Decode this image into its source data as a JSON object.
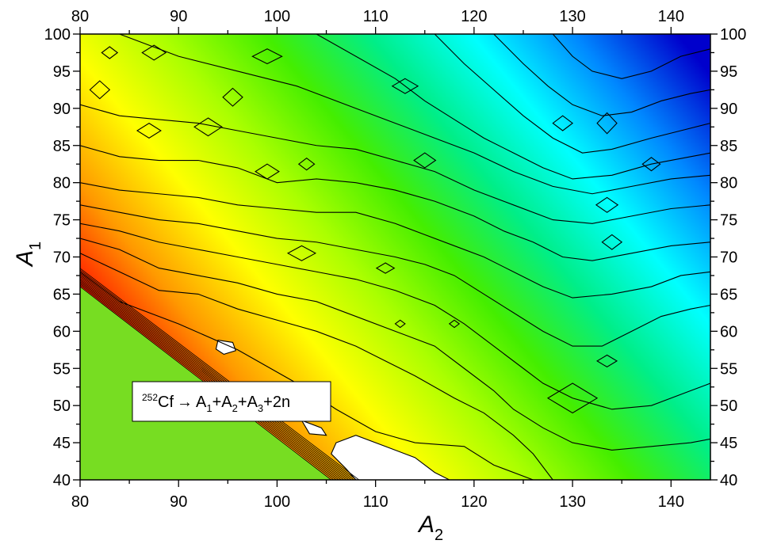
{
  "chart_data": {
    "type": "heatmap",
    "subtype": "filled-contour",
    "title": "",
    "xlabel": {
      "main": "A",
      "sub": "2"
    },
    "ylabel": {
      "main": "A",
      "sub": "1"
    },
    "xlim": [
      80,
      144
    ],
    "ylim": [
      40,
      100
    ],
    "x_ticks": [
      80,
      90,
      100,
      110,
      120,
      130,
      140
    ],
    "y_ticks": [
      40,
      45,
      50,
      55,
      60,
      65,
      70,
      75,
      80,
      85,
      90,
      95,
      100
    ],
    "tick_labels_on_all_sides": true,
    "grid": false,
    "legend": "none",
    "colormap": [
      "#ff0000",
      "#ff9900",
      "#ffff00",
      "#aaff00",
      "#44ee00",
      "#00ee88",
      "#00ffff",
      "#0088ff",
      "#0000cc"
    ],
    "low_region_color": "#77dd22",
    "annotation": {
      "prefix": "252",
      "symbol": "Cf",
      "arrow": "→",
      "terms": [
        {
          "base": "A",
          "sub": "1",
          "join": "+"
        },
        {
          "base": "A",
          "sub": "2",
          "join": "+"
        },
        {
          "base": "A",
          "sub": "3",
          "join": "+2n"
        }
      ]
    },
    "contour_lines": [
      {
        "level": 1,
        "points": [
          [
            80,
            68
          ],
          [
            84,
            64
          ],
          [
            90,
            61
          ],
          [
            96,
            57.5
          ],
          [
            102,
            53
          ],
          [
            106,
            49.5
          ],
          [
            110,
            46.5
          ],
          [
            114,
            45
          ],
          [
            119,
            44.5
          ],
          [
            122,
            42
          ],
          [
            126,
            40
          ]
        ]
      },
      {
        "level": 2,
        "points": [
          [
            80,
            70.5
          ],
          [
            84,
            68
          ],
          [
            88,
            65.5
          ],
          [
            92,
            65
          ],
          [
            96,
            63
          ],
          [
            100,
            61.5
          ],
          [
            104,
            60
          ],
          [
            108,
            58
          ],
          [
            111,
            56
          ],
          [
            114,
            54
          ],
          [
            118,
            51
          ],
          [
            121,
            49
          ],
          [
            124,
            46
          ],
          [
            126,
            43.5
          ],
          [
            128,
            40
          ]
        ]
      },
      {
        "level": 3,
        "points": [
          [
            80,
            72.5
          ],
          [
            84,
            71
          ],
          [
            88,
            68.5
          ],
          [
            92,
            67.5
          ],
          [
            96,
            66.5
          ],
          [
            100,
            65
          ],
          [
            104,
            64
          ],
          [
            108,
            62
          ],
          [
            112,
            60
          ],
          [
            116,
            58
          ],
          [
            119,
            55
          ],
          [
            122,
            52
          ],
          [
            124,
            49.5
          ],
          [
            127,
            47
          ],
          [
            130,
            45
          ],
          [
            134,
            44
          ],
          [
            138,
            44.5
          ],
          [
            142,
            45
          ],
          [
            144,
            45.5
          ]
        ]
      },
      {
        "level": 4,
        "points": [
          [
            80,
            74.5
          ],
          [
            84,
            73.5
          ],
          [
            88,
            72
          ],
          [
            92,
            71
          ],
          [
            96,
            70
          ],
          [
            100,
            69
          ],
          [
            104,
            68
          ],
          [
            108,
            67
          ],
          [
            112,
            65.5
          ],
          [
            116,
            63.5
          ],
          [
            119,
            61
          ],
          [
            121,
            59
          ],
          [
            123,
            57
          ],
          [
            125,
            55
          ],
          [
            127,
            53
          ],
          [
            130,
            51
          ],
          [
            134,
            49.5
          ],
          [
            138,
            50
          ],
          [
            142,
            52
          ],
          [
            144,
            53
          ]
        ]
      },
      {
        "level": 5,
        "points": [
          [
            80,
            77
          ],
          [
            84,
            76
          ],
          [
            88,
            75
          ],
          [
            92,
            74.5
          ],
          [
            96,
            73.5
          ],
          [
            100,
            72.5
          ],
          [
            104,
            72
          ],
          [
            108,
            71
          ],
          [
            112,
            70
          ],
          [
            115,
            69
          ],
          [
            118,
            67.5
          ],
          [
            121,
            65
          ],
          [
            124,
            62.5
          ],
          [
            127,
            60
          ],
          [
            130,
            58
          ],
          [
            133,
            58
          ],
          [
            136,
            60
          ],
          [
            139,
            62
          ],
          [
            142,
            63
          ],
          [
            144,
            63.5
          ]
        ]
      },
      {
        "level": 6,
        "points": [
          [
            80,
            80
          ],
          [
            84,
            79
          ],
          [
            88,
            78.5
          ],
          [
            92,
            78
          ],
          [
            96,
            77
          ],
          [
            100,
            76.5
          ],
          [
            104,
            76
          ],
          [
            108,
            76
          ],
          [
            112,
            74.5
          ],
          [
            115,
            73
          ],
          [
            118,
            71.5
          ],
          [
            121,
            70
          ],
          [
            124,
            68
          ],
          [
            127,
            66
          ],
          [
            130,
            64.5
          ],
          [
            134,
            65
          ],
          [
            138,
            66
          ],
          [
            141,
            67.5
          ],
          [
            144,
            68
          ]
        ]
      },
      {
        "level": 7,
        "points": [
          [
            80,
            85
          ],
          [
            84,
            83.5
          ],
          [
            88,
            83
          ],
          [
            92,
            83
          ],
          [
            96,
            82
          ],
          [
            100,
            80
          ],
          [
            104,
            80.5
          ],
          [
            108,
            80
          ],
          [
            112,
            79
          ],
          [
            116,
            77.5
          ],
          [
            120,
            75.5
          ],
          [
            123,
            73.5
          ],
          [
            126,
            72
          ],
          [
            129,
            70
          ],
          [
            132,
            69.5
          ],
          [
            136,
            70.5
          ],
          [
            140,
            71.5
          ],
          [
            144,
            72
          ]
        ]
      },
      {
        "level": 8,
        "points": [
          [
            80,
            90.5
          ],
          [
            84,
            89
          ],
          [
            88,
            88.5
          ],
          [
            92,
            88
          ],
          [
            96,
            87
          ],
          [
            100,
            86
          ],
          [
            104,
            85
          ],
          [
            108,
            84.5
          ],
          [
            112,
            83
          ],
          [
            116,
            81.5
          ],
          [
            120,
            79
          ],
          [
            124,
            77
          ],
          [
            128,
            75
          ],
          [
            132,
            74.5
          ],
          [
            136,
            75.5
          ],
          [
            140,
            76.5
          ],
          [
            144,
            77
          ]
        ]
      },
      {
        "level": 9,
        "points": [
          [
            84,
            100
          ],
          [
            90,
            97
          ],
          [
            96,
            95
          ],
          [
            102,
            93
          ],
          [
            108,
            90
          ],
          [
            112,
            88
          ],
          [
            116,
            86
          ],
          [
            120,
            84
          ],
          [
            124,
            81.5
          ],
          [
            128,
            79.5
          ],
          [
            132,
            78.5
          ],
          [
            136,
            79.5
          ],
          [
            140,
            80.5
          ],
          [
            144,
            81
          ]
        ]
      },
      {
        "level": 10,
        "points": [
          [
            104,
            100
          ],
          [
            108,
            97
          ],
          [
            112,
            94
          ],
          [
            115,
            91
          ],
          [
            118,
            88.5
          ],
          [
            121,
            86
          ],
          [
            124,
            84
          ],
          [
            127,
            82
          ],
          [
            130,
            80.5
          ],
          [
            134,
            81
          ],
          [
            138,
            82.5
          ],
          [
            142,
            83.5
          ],
          [
            144,
            84
          ]
        ]
      },
      {
        "level": 11,
        "points": [
          [
            116,
            100
          ],
          [
            119,
            96
          ],
          [
            122,
            92.5
          ],
          [
            125,
            89
          ],
          [
            128,
            86
          ],
          [
            131,
            84
          ],
          [
            134,
            84.5
          ],
          [
            138,
            86
          ],
          [
            141,
            87
          ],
          [
            144,
            88
          ]
        ]
      },
      {
        "level": 12,
        "points": [
          [
            122,
            100
          ],
          [
            125,
            96
          ],
          [
            127.5,
            93
          ],
          [
            130,
            90.5
          ],
          [
            133,
            89
          ],
          [
            136,
            89.5
          ],
          [
            139,
            91
          ],
          [
            142,
            92
          ],
          [
            144,
            92.5
          ]
        ]
      },
      {
        "level": 13,
        "points": [
          [
            128,
            100
          ],
          [
            130,
            97
          ],
          [
            132,
            95
          ],
          [
            135,
            94
          ],
          [
            138,
            95
          ],
          [
            141,
            97
          ],
          [
            144,
            98
          ]
        ]
      }
    ],
    "contour_islands": [
      {
        "x": 83,
        "y": 97.5,
        "rx": 0.8,
        "ry": 0.8
      },
      {
        "x": 87.5,
        "y": 97.5,
        "rx": 1.2,
        "ry": 1.0
      },
      {
        "x": 82,
        "y": 92.5,
        "rx": 1.0,
        "ry": 1.2
      },
      {
        "x": 87,
        "y": 87,
        "rx": 1.2,
        "ry": 1.0
      },
      {
        "x": 93,
        "y": 87.5,
        "rx": 1.4,
        "ry": 1.2
      },
      {
        "x": 99,
        "y": 97,
        "rx": 1.5,
        "ry": 1.0
      },
      {
        "x": 95.5,
        "y": 91.5,
        "rx": 1.0,
        "ry": 1.2
      },
      {
        "x": 99,
        "y": 81.5,
        "rx": 1.2,
        "ry": 1.0
      },
      {
        "x": 103,
        "y": 82.5,
        "rx": 0.8,
        "ry": 0.8
      },
      {
        "x": 113,
        "y": 93,
        "rx": 1.3,
        "ry": 1.0
      },
      {
        "x": 115,
        "y": 83,
        "rx": 1.1,
        "ry": 1.0
      },
      {
        "x": 111,
        "y": 68.5,
        "rx": 0.9,
        "ry": 0.7
      },
      {
        "x": 102.5,
        "y": 70.5,
        "rx": 1.4,
        "ry": 1.0
      },
      {
        "x": 112.5,
        "y": 61,
        "rx": 0.5,
        "ry": 0.5
      },
      {
        "x": 118,
        "y": 61,
        "rx": 0.5,
        "ry": 0.5
      },
      {
        "x": 133.5,
        "y": 88,
        "rx": 1.0,
        "ry": 1.4
      },
      {
        "x": 129,
        "y": 88,
        "rx": 1.0,
        "ry": 1.0
      },
      {
        "x": 138,
        "y": 82.5,
        "rx": 0.9,
        "ry": 0.9
      },
      {
        "x": 133.5,
        "y": 77,
        "rx": 1.1,
        "ry": 1.0
      },
      {
        "x": 134,
        "y": 72,
        "rx": 1.0,
        "ry": 1.0
      },
      {
        "x": 133.5,
        "y": 56,
        "rx": 1.0,
        "ry": 0.8
      },
      {
        "x": 130,
        "y": 51,
        "rx": 2.5,
        "ry": 2.0
      }
    ],
    "white_regions": [
      [
        [
          94,
          58.8
        ],
        [
          95.5,
          58.5
        ],
        [
          95.8,
          57.4
        ],
        [
          94.6,
          56.9
        ],
        [
          93.8,
          57.6
        ]
      ],
      [
        [
          102.5,
          48
        ],
        [
          104.5,
          47
        ],
        [
          105,
          46
        ],
        [
          103.3,
          46.2
        ]
      ],
      [
        [
          106,
          45
        ],
        [
          108,
          46
        ],
        [
          111,
          44.5
        ],
        [
          114,
          43
        ],
        [
          116,
          41
        ],
        [
          117.5,
          40
        ],
        [
          108,
          40
        ],
        [
          107,
          41.5
        ],
        [
          105.5,
          43.5
        ]
      ]
    ]
  }
}
